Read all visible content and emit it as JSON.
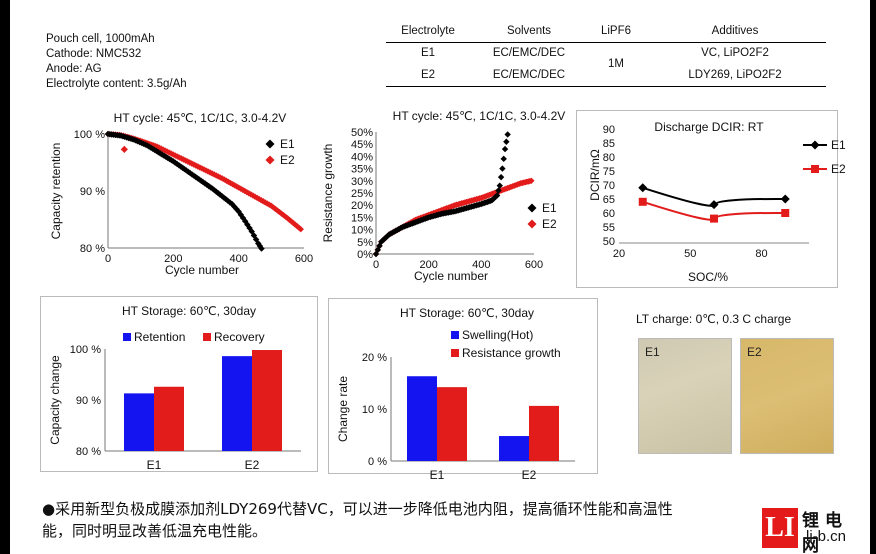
{
  "cell_info": [
    "Pouch cell, 1000mAh",
    "Cathode: NMC532",
    "Anode: AG",
    "Electrolyte content: 3.5g/Ah"
  ],
  "electrolyte_table": {
    "headers": [
      "Electrolyte",
      "Solvents",
      "LiPF6",
      "Additives"
    ],
    "rows": [
      {
        "name": "E1",
        "solvents": "EC/EMC/DEC",
        "additives": "VC, LiPO2F2"
      },
      {
        "name": "E2",
        "solvents": "EC/EMC/DEC",
        "additives": "LDY269, LiPO2F2"
      }
    ],
    "lipf6": "1M"
  },
  "colors": {
    "e1": "#000000",
    "e2": "#e21b1b",
    "retention": "#1414f0",
    "recovery": "#e21b1b"
  },
  "chart_data": [
    {
      "id": "capacity",
      "type": "scatter",
      "title": "HT cycle: 45℃, 1C/1C, 3.0-4.2V",
      "xlabel": "Cycle number",
      "ylabel": "Capacity retention",
      "xlim": [
        0,
        600
      ],
      "ylim": [
        80,
        100
      ],
      "xticks": [
        "0",
        "200",
        "400",
        "600"
      ],
      "yticks": [
        "80 %",
        "90 %",
        "100 %"
      ],
      "series": [
        {
          "name": "E1",
          "x": [
            0,
            40,
            80,
            120,
            160,
            200,
            240,
            280,
            320,
            360,
            380,
            400,
            420,
            440,
            460,
            470
          ],
          "y": [
            100,
            99.7,
            99.0,
            98.0,
            96.6,
            95.2,
            93.6,
            92.0,
            90.4,
            88.6,
            87.7,
            86.4,
            84.7,
            82.9,
            80.8,
            79.9
          ]
        },
        {
          "name": "E2",
          "x": [
            0,
            40,
            60,
            100,
            150,
            200,
            250,
            300,
            350,
            400,
            450,
            500,
            550,
            590
          ],
          "y": [
            100,
            99.8,
            99.5,
            98.8,
            97.8,
            96.4,
            95.0,
            93.6,
            92.2,
            90.6,
            89.0,
            87.4,
            85.2,
            83.3
          ]
        }
      ],
      "outlier": {
        "series": "E2",
        "x": 50,
        "y": 97.3
      }
    },
    {
      "id": "resistance",
      "type": "scatter",
      "title": "HT cycle: 45℃, 1C/1C, 3.0-4.2V",
      "xlabel": "Cycle number",
      "ylabel": "Resistance growth",
      "xlim": [
        0,
        600
      ],
      "ylim": [
        0,
        50
      ],
      "xticks": [
        "0",
        "200",
        "400",
        "600"
      ],
      "yticks": [
        "0%",
        "5%",
        "10%",
        "15%",
        "20%",
        "25%",
        "30%",
        "35%",
        "40%",
        "45%",
        "50%"
      ],
      "series": [
        {
          "name": "E1",
          "x": [
            0,
            20,
            50,
            100,
            150,
            200,
            250,
            300,
            350,
            400,
            440,
            460,
            470,
            480,
            490,
            500
          ],
          "y": [
            0,
            5,
            8,
            11,
            13,
            15,
            16.5,
            17.5,
            19,
            20.5,
            22,
            24,
            28,
            35,
            43,
            49
          ]
        },
        {
          "name": "E2",
          "x": [
            0,
            20,
            50,
            100,
            150,
            200,
            250,
            300,
            350,
            400,
            450,
            500,
            550,
            590
          ],
          "y": [
            0,
            5,
            8,
            11,
            14,
            16,
            18,
            20,
            21.5,
            23,
            25,
            27,
            29,
            30
          ]
        }
      ]
    },
    {
      "id": "dcir",
      "type": "line",
      "title": "Discharge DCIR: RT",
      "xlabel": "SOC/%",
      "ylabel": "DCIR/mΩ",
      "xlim": [
        20,
        100
      ],
      "ylim": [
        50,
        90
      ],
      "xticks": [
        "20",
        "50",
        "80"
      ],
      "yticks": [
        "50",
        "55",
        "60",
        "65",
        "70",
        "75",
        "80",
        "85",
        "90"
      ],
      "series": [
        {
          "name": "E1",
          "x": [
            30,
            60,
            90
          ],
          "y": [
            69,
            63,
            65
          ]
        },
        {
          "name": "E2",
          "x": [
            30,
            60,
            90
          ],
          "y": [
            64,
            58,
            60
          ]
        }
      ]
    },
    {
      "id": "storage_capacity",
      "type": "bar",
      "title": "HT Storage: 60℃, 30day",
      "ylabel": "Capacity change",
      "categories": [
        "E1",
        "E2"
      ],
      "ylim": [
        80,
        100
      ],
      "yticks": [
        "80 %",
        "90 %",
        "100 %"
      ],
      "series": [
        {
          "name": "Retention",
          "values": [
            91.3,
            98.6
          ]
        },
        {
          "name": "Recovery",
          "values": [
            92.6,
            99.8
          ]
        }
      ]
    },
    {
      "id": "storage_rate",
      "type": "bar",
      "title": "HT Storage: 60℃, 30day",
      "ylabel": "Change rate",
      "categories": [
        "E1",
        "E2"
      ],
      "ylim": [
        0,
        20
      ],
      "yticks": [
        "0 %",
        "10 %",
        "20 %"
      ],
      "series": [
        {
          "name": "Swelling(Hot)",
          "values": [
            16.3,
            4.8
          ]
        },
        {
          "name": "Resistance growth",
          "values": [
            14.2,
            10.6
          ]
        }
      ]
    }
  ],
  "lt_charge": {
    "title": "LT charge: 0℃, 0.3 C charge",
    "labels": [
      "E1",
      "E2"
    ]
  },
  "footer": {
    "line1": "●采用新型负极成膜添加剂LDY269代替VC，可以进一步降低电池内阻，提高循环性能和高温性",
    "line2": "能，同时明显改善低温充电性能。"
  },
  "watermark": {
    "logo": "LI",
    "name": "锂电网",
    "url": "li-b.cn"
  }
}
